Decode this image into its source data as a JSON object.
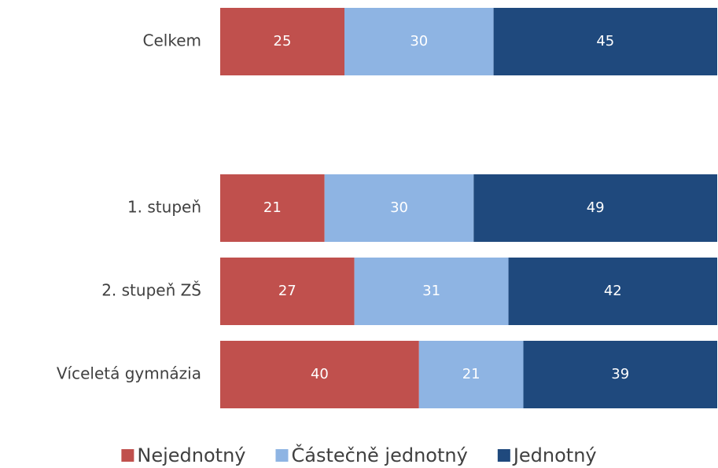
{
  "chart_data": {
    "type": "stacked-bar-horizontal",
    "categories": [
      "Celkem",
      null,
      "1. stupeň",
      "2. stupeň ZŠ",
      "Víceletá gymnázia"
    ],
    "series": [
      {
        "name": "Nejednotný",
        "color": "#c0504d",
        "values": [
          25,
          null,
          21,
          27,
          40
        ]
      },
      {
        "name": "Částečně jednotný",
        "color": "#8eb4e3",
        "values": [
          30,
          null,
          30,
          31,
          21
        ]
      },
      {
        "name": "Jednotný",
        "color": "#1f497d",
        "values": [
          45,
          null,
          49,
          42,
          39
        ]
      }
    ],
    "legend": "bottom"
  }
}
